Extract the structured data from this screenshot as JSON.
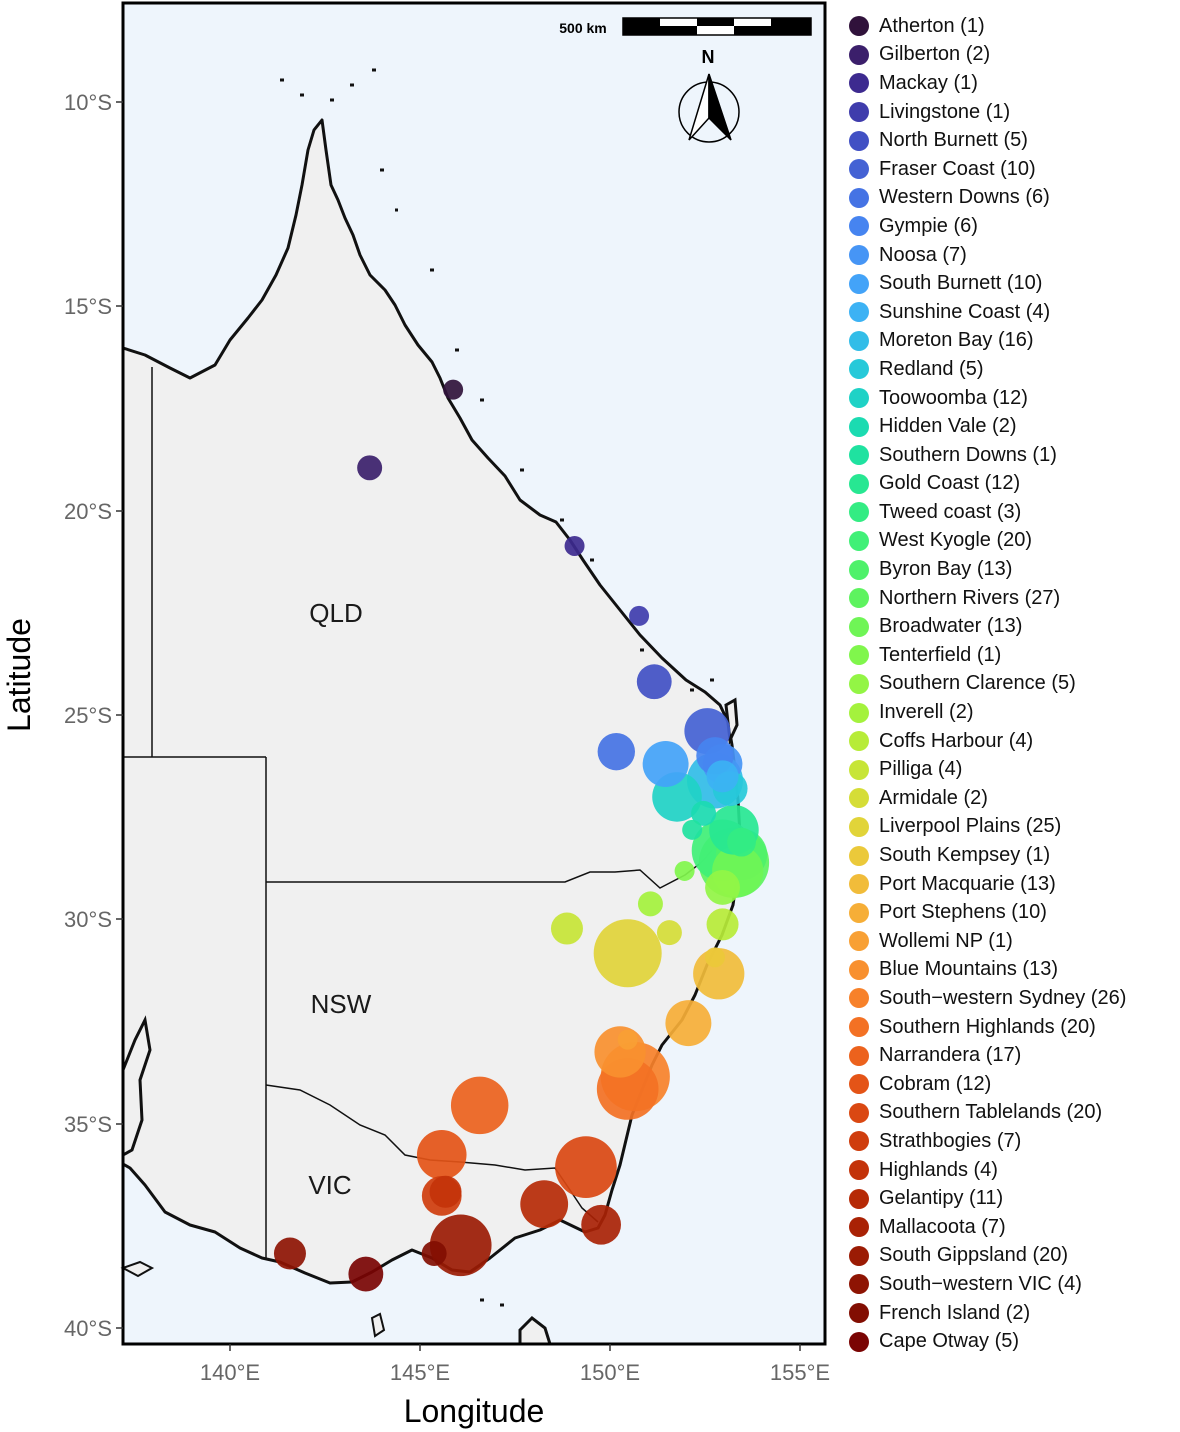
{
  "axes": {
    "xlabel": "Longitude",
    "ylabel": "Latitude",
    "x_ticks": [
      "140°E",
      "145°E",
      "150°E",
      "155°E"
    ],
    "y_ticks": [
      "10°S",
      "15°S",
      "20°S",
      "25°S",
      "30°S",
      "35°S",
      "40°S"
    ]
  },
  "scale_bar": {
    "label": "500 km"
  },
  "north_arrow": {
    "label": "N"
  },
  "state_labels": {
    "qld": "QLD",
    "nsw": "NSW",
    "vic": "VIC"
  },
  "colors": {
    "ocean": "#eef5fc",
    "land": "#f0f0f0",
    "coast": "#111111"
  },
  "chart_data": {
    "type": "scatter",
    "xlabel": "Longitude",
    "ylabel": "Latitude",
    "xlim": [
      137.2,
      155.7
    ],
    "ylim": [
      -40.5,
      -7.9
    ],
    "legend_position": "right",
    "points": [
      {
        "name": "Atherton (1)",
        "lon": 145.9,
        "lat": -17.3,
        "count": 1,
        "color": "#30123b"
      },
      {
        "name": "Gilberton (2)",
        "lon": 143.7,
        "lat": -19.2,
        "count": 2,
        "color": "#3b1f6b"
      },
      {
        "name": "Mackay (1)",
        "lon": 149.1,
        "lat": -21.1,
        "count": 1,
        "color": "#3d2a8f"
      },
      {
        "name": "Livingstone (1)",
        "lon": 150.8,
        "lat": -22.8,
        "count": 1,
        "color": "#3f3cac"
      },
      {
        "name": "North Burnett (5)",
        "lon": 151.2,
        "lat": -24.4,
        "count": 5,
        "color": "#4150c4"
      },
      {
        "name": "Fraser Coast (10)",
        "lon": 152.6,
        "lat": -25.6,
        "count": 10,
        "color": "#4462d4"
      },
      {
        "name": "Western Downs (6)",
        "lon": 150.2,
        "lat": -26.1,
        "count": 6,
        "color": "#4573e4"
      },
      {
        "name": "Gympie (6)",
        "lon": 152.8,
        "lat": -26.2,
        "count": 6,
        "color": "#4684f0"
      },
      {
        "name": "Noosa (7)",
        "lon": 153.0,
        "lat": -26.4,
        "count": 7,
        "color": "#4695f5"
      },
      {
        "name": "South Burnett (10)",
        "lon": 151.5,
        "lat": -26.4,
        "count": 10,
        "color": "#43a3f8"
      },
      {
        "name": "Sunshine Coast (4)",
        "lon": 153.0,
        "lat": -26.7,
        "count": 4,
        "color": "#3cb2f4"
      },
      {
        "name": "Moreton Bay (16)",
        "lon": 152.8,
        "lat": -26.8,
        "count": 16,
        "color": "#32bde8"
      },
      {
        "name": "Redland (5)",
        "lon": 153.2,
        "lat": -27.0,
        "count": 5,
        "color": "#26c9d9"
      },
      {
        "name": "Toowoomba (12)",
        "lon": 151.8,
        "lat": -27.2,
        "count": 12,
        "color": "#1fd2c6"
      },
      {
        "name": "Hidden Vale (2)",
        "lon": 152.5,
        "lat": -27.6,
        "count": 2,
        "color": "#1bdbb1"
      },
      {
        "name": "Southern Downs (1)",
        "lon": 152.2,
        "lat": -28.0,
        "count": 1,
        "color": "#1fe2a0"
      },
      {
        "name": "Gold Coast (12)",
        "lon": 153.3,
        "lat": -28.0,
        "count": 12,
        "color": "#27e792"
      },
      {
        "name": "Tweed coast (3)",
        "lon": 153.5,
        "lat": -28.3,
        "count": 3,
        "color": "#33ec83"
      },
      {
        "name": "West Kyogle (20)",
        "lon": 153.0,
        "lat": -28.5,
        "count": 20,
        "color": "#40f077"
      },
      {
        "name": "Byron Bay (13)",
        "lon": 153.5,
        "lat": -28.6,
        "count": 13,
        "color": "#4ef16a"
      },
      {
        "name": "Northern Rivers (27)",
        "lon": 153.3,
        "lat": -28.8,
        "count": 27,
        "color": "#5ef35f"
      },
      {
        "name": "Broadwater (13)",
        "lon": 153.4,
        "lat": -29.0,
        "count": 13,
        "color": "#6ff556"
      },
      {
        "name": "Tenterfield (1)",
        "lon": 152.0,
        "lat": -29.0,
        "count": 1,
        "color": "#80f64c"
      },
      {
        "name": "Southern Clarence (5)",
        "lon": 153.0,
        "lat": -29.4,
        "count": 5,
        "color": "#93f545"
      },
      {
        "name": "Inverell (2)",
        "lon": 151.1,
        "lat": -29.8,
        "count": 2,
        "color": "#a4f23d"
      },
      {
        "name": "Coffs Harbour (4)",
        "lon": 153.0,
        "lat": -30.3,
        "count": 4,
        "color": "#b7ec38"
      },
      {
        "name": "Pilliga (4)",
        "lon": 148.9,
        "lat": -30.4,
        "count": 4,
        "color": "#c7e536"
      },
      {
        "name": "Armidale (2)",
        "lon": 151.6,
        "lat": -30.5,
        "count": 2,
        "color": "#d5dd37"
      },
      {
        "name": "Liverpool Plains (25)",
        "lon": 150.5,
        "lat": -31.0,
        "count": 25,
        "color": "#e1d439"
      },
      {
        "name": "South Kempsey (1)",
        "lon": 152.8,
        "lat": -31.1,
        "count": 1,
        "color": "#ebc93a"
      },
      {
        "name": "Port Macquarie (13)",
        "lon": 152.9,
        "lat": -31.5,
        "count": 13,
        "color": "#f1bc3a"
      },
      {
        "name": "Port Stephens (10)",
        "lon": 152.1,
        "lat": -32.7,
        "count": 10,
        "color": "#f6ae37"
      },
      {
        "name": "Wollemi NP (1)",
        "lon": 150.5,
        "lat": -33.1,
        "count": 1,
        "color": "#f8a034"
      },
      {
        "name": "Blue Mountains (13)",
        "lon": 150.3,
        "lat": -33.4,
        "count": 13,
        "color": "#f8902f"
      },
      {
        "name": "South−western Sydney (26)",
        "lon": 150.7,
        "lat": -34.0,
        "count": 26,
        "color": "#f7812a"
      },
      {
        "name": "Southern Highlands (20)",
        "lon": 150.5,
        "lat": -34.3,
        "count": 20,
        "color": "#f37124"
      },
      {
        "name": "Narrandera (17)",
        "lon": 146.6,
        "lat": -34.7,
        "count": 17,
        "color": "#ec621d"
      },
      {
        "name": "Cobram (12)",
        "lon": 145.6,
        "lat": -35.9,
        "count": 12,
        "color": "#e45417"
      },
      {
        "name": "Southern Tablelands (20)",
        "lon": 149.4,
        "lat": -36.2,
        "count": 20,
        "color": "#da4812"
      },
      {
        "name": "Strathbogies (7)",
        "lon": 145.6,
        "lat": -36.9,
        "count": 7,
        "color": "#cf3d0d"
      },
      {
        "name": "Highlands (4)",
        "lon": 145.7,
        "lat": -36.8,
        "count": 4,
        "color": "#c3330a"
      },
      {
        "name": "Gelantipy (11)",
        "lon": 148.3,
        "lat": -37.1,
        "count": 11,
        "color": "#b62a06"
      },
      {
        "name": "Mallacoota (7)",
        "lon": 149.8,
        "lat": -37.6,
        "count": 7,
        "color": "#a92205"
      },
      {
        "name": "South Gippsland (20)",
        "lon": 146.1,
        "lat": -38.1,
        "count": 20,
        "color": "#9b1b04"
      },
      {
        "name": "South−western VIC (4)",
        "lon": 141.6,
        "lat": -38.3,
        "count": 4,
        "color": "#8e1403"
      },
      {
        "name": "French Island (2)",
        "lon": 145.4,
        "lat": -38.3,
        "count": 2,
        "color": "#820e02"
      },
      {
        "name": "Cape Otway (5)",
        "lon": 143.6,
        "lat": -38.8,
        "count": 5,
        "color": "#7a0403"
      }
    ]
  }
}
